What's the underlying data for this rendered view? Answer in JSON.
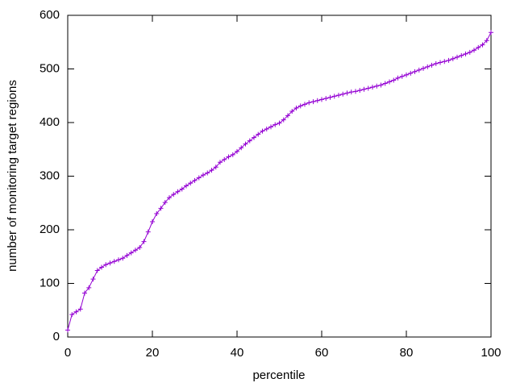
{
  "chart_data": {
    "type": "line",
    "xlabel": "percentile",
    "ylabel": "number of monitoring target regions",
    "x": [
      0,
      1,
      2,
      3,
      4,
      5,
      6,
      7,
      8,
      9,
      10,
      11,
      12,
      13,
      14,
      15,
      16,
      17,
      18,
      19,
      20,
      21,
      22,
      23,
      24,
      25,
      26,
      27,
      28,
      29,
      30,
      31,
      32,
      33,
      34,
      35,
      36,
      37,
      38,
      39,
      40,
      41,
      42,
      43,
      44,
      45,
      46,
      47,
      48,
      49,
      50,
      51,
      52,
      53,
      54,
      55,
      56,
      57,
      58,
      59,
      60,
      61,
      62,
      63,
      64,
      65,
      66,
      67,
      68,
      69,
      70,
      71,
      72,
      73,
      74,
      75,
      76,
      77,
      78,
      79,
      80,
      81,
      82,
      83,
      84,
      85,
      86,
      87,
      88,
      89,
      90,
      91,
      92,
      93,
      94,
      95,
      96,
      97,
      98,
      99,
      100
    ],
    "series": [
      {
        "color": "#9400d3",
        "values": [
          13,
          42,
          47,
          52,
          82,
          92,
          108,
          124,
          130,
          135,
          138,
          141,
          144,
          147,
          152,
          157,
          162,
          167,
          178,
          196,
          215,
          230,
          240,
          251,
          260,
          266,
          271,
          276,
          282,
          287,
          292,
          297,
          302,
          306,
          311,
          317,
          326,
          331,
          336,
          340,
          346,
          353,
          360,
          366,
          372,
          378,
          384,
          388,
          392,
          396,
          399,
          405,
          413,
          421,
          427,
          431,
          434,
          437,
          439,
          441,
          443,
          445,
          447,
          449,
          451,
          453,
          455,
          457,
          458,
          460,
          462,
          464,
          466,
          468,
          470,
          473,
          476,
          479,
          483,
          486,
          489,
          492,
          495,
          498,
          501,
          504,
          507,
          510,
          512,
          514,
          516,
          519,
          522,
          525,
          528,
          531,
          535,
          540,
          545,
          553,
          568
        ]
      }
    ],
    "xlim": [
      0,
      100
    ],
    "xticks": [
      0,
      20,
      40,
      60,
      80,
      100
    ],
    "ylim": [
      0,
      600
    ],
    "yticks": [
      0,
      100,
      200,
      300,
      400,
      500,
      600
    ],
    "grid": false
  }
}
